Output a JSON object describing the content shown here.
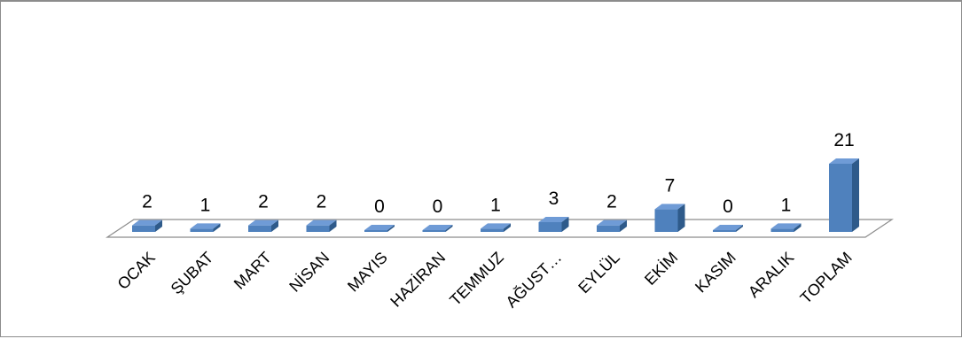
{
  "chart_data": {
    "type": "bar",
    "categories": [
      "OCAK",
      "ŞUBAT",
      "MART",
      "NİSAN",
      "MAYIS",
      "HAZİRAN",
      "TEMMUZ",
      "AĞUST…",
      "EYLÜL",
      "EKİM",
      "KASIM",
      "ARALIK",
      "TOPLAM"
    ],
    "values": [
      2,
      1,
      2,
      2,
      0,
      0,
      1,
      3,
      2,
      7,
      0,
      1,
      21
    ],
    "title": "",
    "xlabel": "",
    "ylabel": "",
    "ylim": [
      0,
      21
    ],
    "grid": false,
    "legend": "none",
    "data_labels": true,
    "style": "3d-column"
  },
  "colors": {
    "bar_front": "#4f81bd",
    "bar_top": "#6f9bd6",
    "bar_side": "#2e5a8a",
    "floor_fill": "#ffffff",
    "floor_stroke": "#8c8c8c"
  }
}
